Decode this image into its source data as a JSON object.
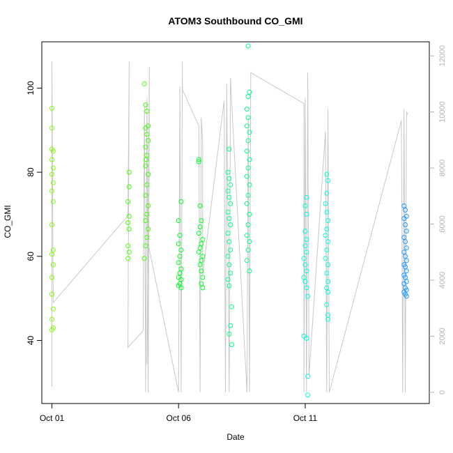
{
  "chart_data": {
    "type": "scatter",
    "title": "ATOM3 Southbound CO_GMI",
    "xlabel": "Date",
    "ylabel": "CO_GMI",
    "x_ticks": [
      {
        "day": 1,
        "label": "Oct 01"
      },
      {
        "day": 6,
        "label": "Oct 06"
      },
      {
        "day": 11,
        "label": "Oct 11"
      }
    ],
    "y_ticks": [
      40,
      60,
      80,
      100
    ],
    "xlim_days": [
      0.6,
      15.9
    ],
    "ylim": [
      25,
      111
    ],
    "y2_ticks": [
      0,
      2000,
      4000,
      6000,
      8000,
      10000,
      12000
    ],
    "y2lim": [
      -400,
      12500
    ],
    "legend": "none",
    "grid": false,
    "series": [
      {
        "color": "#7FFF00",
        "points": [
          {
            "day": 1.0,
            "co": 95.2
          },
          {
            "day": 1.0,
            "co": 90.5
          },
          {
            "day": 1.0,
            "co": 85.5
          },
          {
            "day": 1.05,
            "co": 85.0
          },
          {
            "day": 1.0,
            "co": 83.0
          },
          {
            "day": 1.05,
            "co": 81.0
          },
          {
            "day": 1.0,
            "co": 79.5
          },
          {
            "day": 1.05,
            "co": 77.5
          },
          {
            "day": 1.0,
            "co": 75.5
          },
          {
            "day": 1.05,
            "co": 73.0
          },
          {
            "day": 1.0,
            "co": 67.5
          },
          {
            "day": 1.05,
            "co": 61.5
          },
          {
            "day": 1.0,
            "co": 60.5
          },
          {
            "day": 1.05,
            "co": 58.0
          },
          {
            "day": 1.0,
            "co": 55.0
          },
          {
            "day": 1.0,
            "co": 51.0
          },
          {
            "day": 1.05,
            "co": 47.5
          },
          {
            "day": 1.0,
            "co": 45.0
          },
          {
            "day": 1.05,
            "co": 43.0
          },
          {
            "day": 1.0,
            "co": 42.5
          }
        ]
      },
      {
        "color": "#3FFF00",
        "points": [
          {
            "day": 4.05,
            "co": 80.0
          },
          {
            "day": 4.05,
            "co": 76.5
          },
          {
            "day": 4.0,
            "co": 73.0
          },
          {
            "day": 4.05,
            "co": 69.5
          },
          {
            "day": 4.0,
            "co": 68.0
          },
          {
            "day": 4.05,
            "co": 66.5
          },
          {
            "day": 4.0,
            "co": 62.5
          },
          {
            "day": 4.05,
            "co": 61.0
          },
          {
            "day": 4.0,
            "co": 59.5
          },
          {
            "day": 4.65,
            "co": 101.0
          },
          {
            "day": 4.7,
            "co": 96.0
          },
          {
            "day": 4.75,
            "co": 94.5
          },
          {
            "day": 4.7,
            "co": 90.5
          },
          {
            "day": 4.75,
            "co": 89.0
          },
          {
            "day": 4.8,
            "co": 87.5
          },
          {
            "day": 4.7,
            "co": 86.0
          },
          {
            "day": 4.75,
            "co": 84.0
          },
          {
            "day": 4.7,
            "co": 81.5
          },
          {
            "day": 4.8,
            "co": 79.5
          },
          {
            "day": 4.75,
            "co": 77.0
          },
          {
            "day": 4.7,
            "co": 74.5
          },
          {
            "day": 4.8,
            "co": 72.0
          },
          {
            "day": 4.75,
            "co": 70.0
          },
          {
            "day": 4.7,
            "co": 68.5
          },
          {
            "day": 4.8,
            "co": 66.5
          },
          {
            "day": 4.75,
            "co": 64.5
          },
          {
            "day": 4.7,
            "co": 62.5
          },
          {
            "day": 4.65,
            "co": 59.5
          },
          {
            "day": 4.8,
            "co": 91.0
          },
          {
            "day": 4.72,
            "co": 83.0
          }
        ]
      },
      {
        "color": "#00FF22",
        "points": [
          {
            "day": 6.1,
            "co": 73.0
          },
          {
            "day": 6.0,
            "co": 68.5
          },
          {
            "day": 6.05,
            "co": 65.0
          },
          {
            "day": 6.0,
            "co": 63.0
          },
          {
            "day": 6.1,
            "co": 61.5
          },
          {
            "day": 6.05,
            "co": 60.0
          },
          {
            "day": 6.0,
            "co": 58.5
          },
          {
            "day": 6.1,
            "co": 57.0
          },
          {
            "day": 6.05,
            "co": 56.0
          },
          {
            "day": 6.0,
            "co": 55.0
          },
          {
            "day": 6.1,
            "co": 54.5
          },
          {
            "day": 6.05,
            "co": 53.5
          },
          {
            "day": 6.0,
            "co": 53.0
          },
          {
            "day": 6.1,
            "co": 52.5
          },
          {
            "day": 6.8,
            "co": 83.0
          },
          {
            "day": 6.8,
            "co": 82.5
          },
          {
            "day": 6.85,
            "co": 72.0
          },
          {
            "day": 6.9,
            "co": 68.5
          },
          {
            "day": 6.85,
            "co": 67.0
          },
          {
            "day": 6.8,
            "co": 65.5
          },
          {
            "day": 6.95,
            "co": 64.0
          },
          {
            "day": 6.9,
            "co": 63.0
          },
          {
            "day": 6.85,
            "co": 62.0
          },
          {
            "day": 6.8,
            "co": 61.0
          },
          {
            "day": 6.95,
            "co": 60.0
          },
          {
            "day": 6.9,
            "co": 59.0
          },
          {
            "day": 6.85,
            "co": 58.0
          },
          {
            "day": 6.9,
            "co": 56.5
          },
          {
            "day": 6.95,
            "co": 55.0
          },
          {
            "day": 6.9,
            "co": 53.5
          },
          {
            "day": 6.95,
            "co": 52.5
          }
        ]
      },
      {
        "color": "#00FF88",
        "points": [
          {
            "day": 8.0,
            "co": 85.5
          },
          {
            "day": 7.95,
            "co": 80.0
          },
          {
            "day": 8.0,
            "co": 78.5
          },
          {
            "day": 8.05,
            "co": 77.0
          },
          {
            "day": 7.95,
            "co": 75.5
          },
          {
            "day": 8.0,
            "co": 74.0
          },
          {
            "day": 8.05,
            "co": 72.5
          },
          {
            "day": 7.95,
            "co": 70.5
          },
          {
            "day": 8.0,
            "co": 69.0
          },
          {
            "day": 8.05,
            "co": 67.5
          },
          {
            "day": 7.95,
            "co": 65.5
          },
          {
            "day": 8.0,
            "co": 63.5
          },
          {
            "day": 8.05,
            "co": 61.5
          },
          {
            "day": 7.95,
            "co": 60.0
          },
          {
            "day": 8.0,
            "co": 58.0
          },
          {
            "day": 8.05,
            "co": 56.0
          },
          {
            "day": 7.95,
            "co": 54.5
          },
          {
            "day": 8.0,
            "co": 53.0
          },
          {
            "day": 8.1,
            "co": 48.0
          },
          {
            "day": 8.05,
            "co": 43.5
          },
          {
            "day": 8.0,
            "co": 41.5
          },
          {
            "day": 8.1,
            "co": 39.0
          },
          {
            "day": 8.75,
            "co": 110.0
          },
          {
            "day": 8.8,
            "co": 99.0
          },
          {
            "day": 8.75,
            "co": 98.0
          },
          {
            "day": 8.7,
            "co": 95.0
          },
          {
            "day": 8.75,
            "co": 93.0
          },
          {
            "day": 8.7,
            "co": 91.0
          },
          {
            "day": 8.8,
            "co": 89.5
          },
          {
            "day": 8.75,
            "co": 87.5
          },
          {
            "day": 8.7,
            "co": 85.0
          },
          {
            "day": 8.8,
            "co": 83.0
          },
          {
            "day": 8.75,
            "co": 81.0
          },
          {
            "day": 8.7,
            "co": 79.0
          },
          {
            "day": 8.8,
            "co": 77.0
          },
          {
            "day": 8.75,
            "co": 74.5
          },
          {
            "day": 8.7,
            "co": 72.5
          },
          {
            "day": 8.8,
            "co": 70.0
          },
          {
            "day": 8.75,
            "co": 67.5
          },
          {
            "day": 8.7,
            "co": 65.0
          },
          {
            "day": 8.8,
            "co": 63.5
          },
          {
            "day": 8.75,
            "co": 61.5
          },
          {
            "day": 8.7,
            "co": 59.0
          },
          {
            "day": 8.8,
            "co": 56.5
          }
        ]
      },
      {
        "color": "#00FFDD",
        "points": [
          {
            "day": 11.05,
            "co": 74.0
          },
          {
            "day": 11.0,
            "co": 72.0
          },
          {
            "day": 11.05,
            "co": 70.0
          },
          {
            "day": 11.0,
            "co": 66.0
          },
          {
            "day": 11.05,
            "co": 64.0
          },
          {
            "day": 11.0,
            "co": 62.5
          },
          {
            "day": 11.05,
            "co": 61.0
          },
          {
            "day": 10.95,
            "co": 59.5
          },
          {
            "day": 11.0,
            "co": 58.0
          },
          {
            "day": 11.05,
            "co": 56.5
          },
          {
            "day": 10.95,
            "co": 55.0
          },
          {
            "day": 11.0,
            "co": 54.0
          },
          {
            "day": 11.05,
            "co": 52.5
          },
          {
            "day": 11.1,
            "co": 50.5
          },
          {
            "day": 10.95,
            "co": 41.0
          },
          {
            "day": 11.05,
            "co": 40.5
          },
          {
            "day": 11.1,
            "co": 31.5
          },
          {
            "day": 11.1,
            "co": 27.0
          },
          {
            "day": 11.85,
            "co": 79.5
          },
          {
            "day": 11.9,
            "co": 78.0
          },
          {
            "day": 11.85,
            "co": 75.0
          },
          {
            "day": 11.8,
            "co": 72.5
          },
          {
            "day": 11.85,
            "co": 70.5
          },
          {
            "day": 11.9,
            "co": 68.5
          },
          {
            "day": 11.85,
            "co": 66.5
          },
          {
            "day": 11.8,
            "co": 65.0
          },
          {
            "day": 11.9,
            "co": 63.5
          },
          {
            "day": 11.85,
            "co": 61.5
          },
          {
            "day": 11.8,
            "co": 59.5
          },
          {
            "day": 11.9,
            "co": 58.0
          },
          {
            "day": 11.85,
            "co": 56.0
          },
          {
            "day": 11.9,
            "co": 54.0
          },
          {
            "day": 11.85,
            "co": 52.5
          },
          {
            "day": 11.9,
            "co": 51.5
          },
          {
            "day": 11.85,
            "co": 48.5
          },
          {
            "day": 11.9,
            "co": 46.0
          },
          {
            "day": 11.9,
            "co": 45.0
          }
        ]
      },
      {
        "color": "#1E9BFF",
        "points": [
          {
            "day": 14.9,
            "co": 72.0
          },
          {
            "day": 14.95,
            "co": 71.0
          },
          {
            "day": 15.0,
            "co": 69.5
          },
          {
            "day": 14.9,
            "co": 69.0
          },
          {
            "day": 14.95,
            "co": 67.5
          },
          {
            "day": 15.0,
            "co": 66.0
          },
          {
            "day": 14.9,
            "co": 64.5
          },
          {
            "day": 14.95,
            "co": 63.5
          },
          {
            "day": 15.0,
            "co": 62.0
          },
          {
            "day": 14.9,
            "co": 61.0
          },
          {
            "day": 14.95,
            "co": 60.0
          },
          {
            "day": 15.0,
            "co": 59.0
          },
          {
            "day": 14.9,
            "co": 58.0
          },
          {
            "day": 14.95,
            "co": 57.5
          },
          {
            "day": 15.0,
            "co": 56.5
          },
          {
            "day": 14.9,
            "co": 55.5
          },
          {
            "day": 14.95,
            "co": 55.0
          },
          {
            "day": 15.0,
            "co": 54.0
          },
          {
            "day": 14.9,
            "co": 53.5
          },
          {
            "day": 14.95,
            "co": 52.5
          },
          {
            "day": 15.0,
            "co": 52.0
          },
          {
            "day": 14.9,
            "co": 51.5
          },
          {
            "day": 14.95,
            "co": 51.0
          },
          {
            "day": 15.0,
            "co": 50.5
          }
        ]
      }
    ],
    "altitude_line": {
      "color": "#c8c8c8",
      "axis": "right",
      "points": [
        [
          1.0,
          11000
        ],
        [
          1.0,
          200
        ],
        [
          1.0,
          11800
        ],
        [
          1.05,
          3200
        ],
        [
          4.0,
          6300
        ],
        [
          4.05,
          11800
        ],
        [
          4.0,
          1600
        ],
        [
          4.6,
          2200
        ],
        [
          4.65,
          10200
        ],
        [
          4.7,
          0
        ],
        [
          4.75,
          10500
        ],
        [
          4.8,
          0
        ],
        [
          4.85,
          11600
        ],
        [
          4.75,
          1000
        ],
        [
          4.8,
          5300
        ],
        [
          6.0,
          0
        ],
        [
          6.05,
          10900
        ],
        [
          6.1,
          0
        ],
        [
          6.15,
          11800
        ],
        [
          6.15,
          10800
        ],
        [
          6.8,
          9500
        ],
        [
          6.85,
          0
        ],
        [
          6.9,
          9800
        ],
        [
          6.95,
          8900
        ],
        [
          6.95,
          4200
        ],
        [
          7.8,
          10400
        ],
        [
          7.85,
          0
        ],
        [
          7.9,
          11000
        ],
        [
          8.0,
          0
        ],
        [
          8.05,
          11200
        ],
        [
          8.1,
          10300
        ],
        [
          8.7,
          0
        ],
        [
          8.75,
          9800
        ],
        [
          8.8,
          0
        ],
        [
          8.85,
          11400
        ],
        [
          10.95,
          10300
        ],
        [
          10.95,
          0
        ],
        [
          11.0,
          10500
        ],
        [
          11.05,
          0
        ],
        [
          11.1,
          11400
        ],
        [
          11.15,
          600
        ],
        [
          11.8,
          9300
        ],
        [
          11.85,
          0
        ],
        [
          11.9,
          10100
        ],
        [
          11.95,
          0
        ],
        [
          14.8,
          9700
        ],
        [
          14.85,
          0
        ],
        [
          14.9,
          10100
        ],
        [
          14.95,
          0
        ],
        [
          15.0,
          10000
        ],
        [
          15.05,
          9900
        ]
      ]
    }
  }
}
